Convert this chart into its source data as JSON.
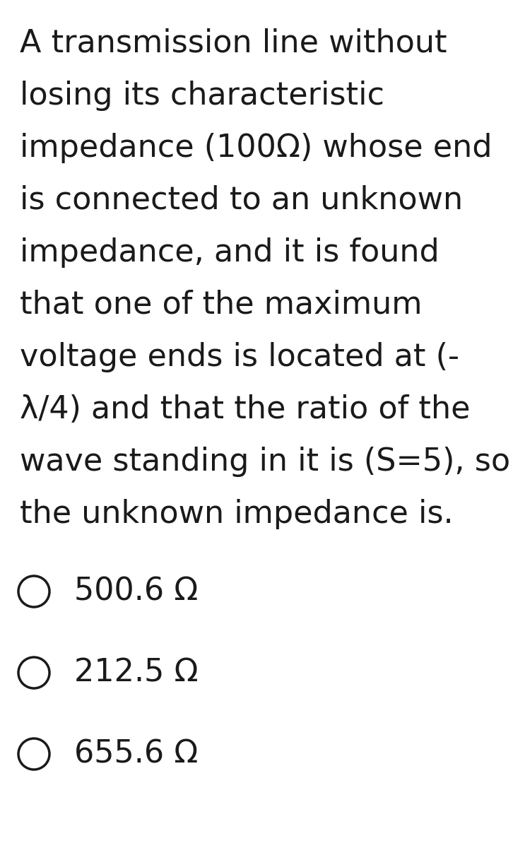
{
  "background_color": "#ffffff",
  "question_lines": [
    "A transmission line without",
    "losing its characteristic",
    "impedance (100Ω) whose end",
    "is connected to an unknown",
    "impedance, and it is found",
    "that one of the maximum",
    "voltage ends is located at (-",
    "λ/4) and that the ratio of the",
    "wave standing in it is (S=5), so",
    "the unknown impedance is."
  ],
  "options": [
    "500.6 Ω",
    "212.5 Ω",
    "655.6 Ω"
  ],
  "text_color": "#1a1a1a",
  "question_fontsize": 32,
  "option_fontsize": 32,
  "circle_linewidth": 2.5
}
